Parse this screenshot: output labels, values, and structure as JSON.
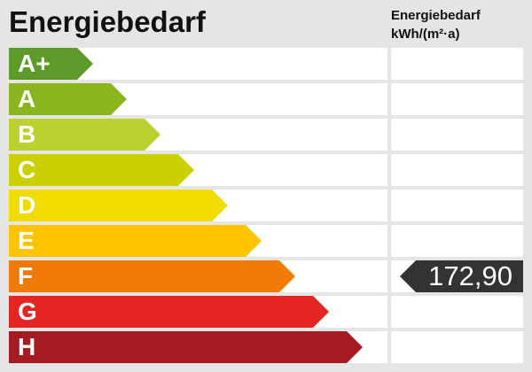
{
  "title": "Energiebedarf",
  "column_title": [
    "Energiebedarf",
    "kWh/(m²·a)"
  ],
  "classes": [
    {
      "label": "A+",
      "color": "#5e9a2a"
    },
    {
      "label": "A",
      "color": "#8ab51f"
    },
    {
      "label": "B",
      "color": "#bcd02f"
    },
    {
      "label": "C",
      "color": "#ccd000"
    },
    {
      "label": "D",
      "color": "#f0dc00"
    },
    {
      "label": "E",
      "color": "#fcc500"
    },
    {
      "label": "F",
      "color": "#ef7a06"
    },
    {
      "label": "G",
      "color": "#e52524"
    },
    {
      "label": "H",
      "color": "#a51b22"
    }
  ],
  "value": {
    "text": "172,90",
    "class": "F",
    "color": "#333333"
  }
}
